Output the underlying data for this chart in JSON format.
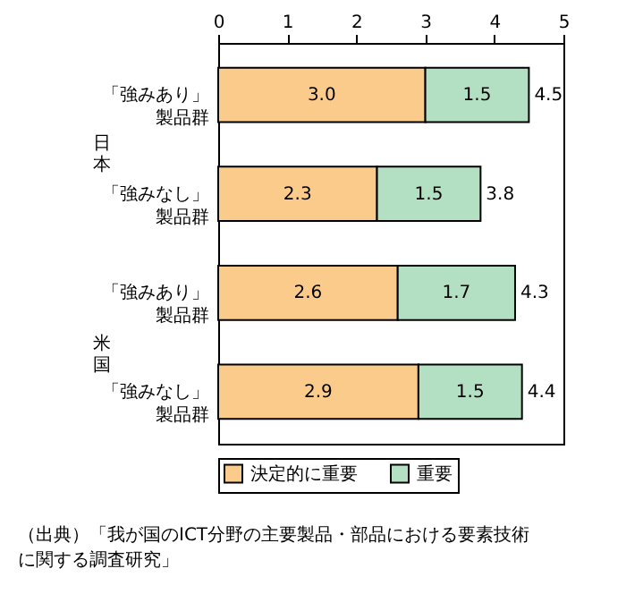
{
  "chart_data": {
    "type": "bar",
    "orientation": "horizontal",
    "stacked": true,
    "categories": [
      "「強みあり」製品群",
      "「強みなし」製品群",
      "「強みあり」製品群",
      "「強みなし」製品群"
    ],
    "series": [
      {
        "name": "決定的に重要",
        "color": "#fbcb8b",
        "values": [
          3.0,
          2.3,
          2.6,
          2.9
        ],
        "value_labels": [
          "3.0",
          "2.3",
          "2.6",
          "2.9"
        ]
      },
      {
        "name": "重要",
        "color": "#b3e0c3",
        "values": [
          1.5,
          1.5,
          1.7,
          1.5
        ],
        "value_labels": [
          "1.5",
          "1.5",
          "1.7",
          "1.5"
        ]
      }
    ],
    "totals": [
      "4.5",
      "3.8",
      "4.3",
      "4.4"
    ],
    "xlim": [
      0,
      5
    ],
    "xticks": [
      0,
      1,
      2,
      3,
      4,
      5
    ],
    "grid": false,
    "legend": "bottom",
    "annotations": [
      "日本",
      "米国",
      "（出典）「我が国のICT分野の主要製品・部品における要素技術に関する調査研究」"
    ]
  }
}
